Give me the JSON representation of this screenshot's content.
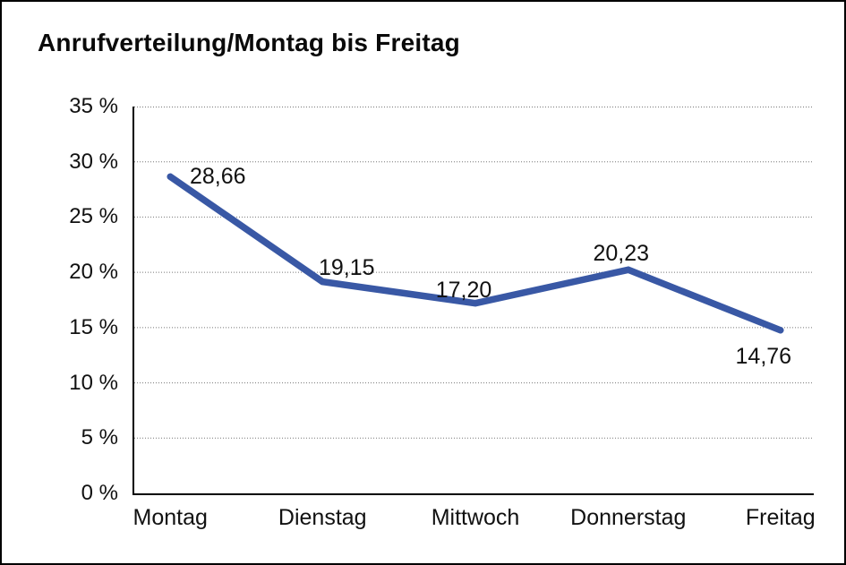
{
  "window": {
    "background": "#ffffff",
    "border_color": "#000000"
  },
  "chart_data": {
    "type": "line",
    "title": "Anrufverteilung/Montag bis Freitag",
    "categories": [
      "Montag",
      "Dienstag",
      "Mittwoch",
      "Donnerstag",
      "Freitag"
    ],
    "series": [
      {
        "name": "Anrufverteilung",
        "values": [
          28.66,
          19.15,
          17.2,
          20.23,
          14.76
        ],
        "point_labels": [
          "28,66",
          "19,15",
          "17,20",
          "20,23",
          "14,76"
        ],
        "color": "#3958A5",
        "line_width": 7.5
      }
    ],
    "xlabel": "",
    "ylabel": "",
    "ylim": [
      0,
      35
    ],
    "y_tick_step": 5,
    "y_tick_labels": [
      "0 %",
      "5 %",
      "10 %",
      "15 %",
      "20 %",
      "25 %",
      "30 %",
      "35 %"
    ],
    "grid": "horizontal-dotted",
    "gridline_color": "#777777",
    "axis_color": "#000000",
    "legend": "none"
  }
}
